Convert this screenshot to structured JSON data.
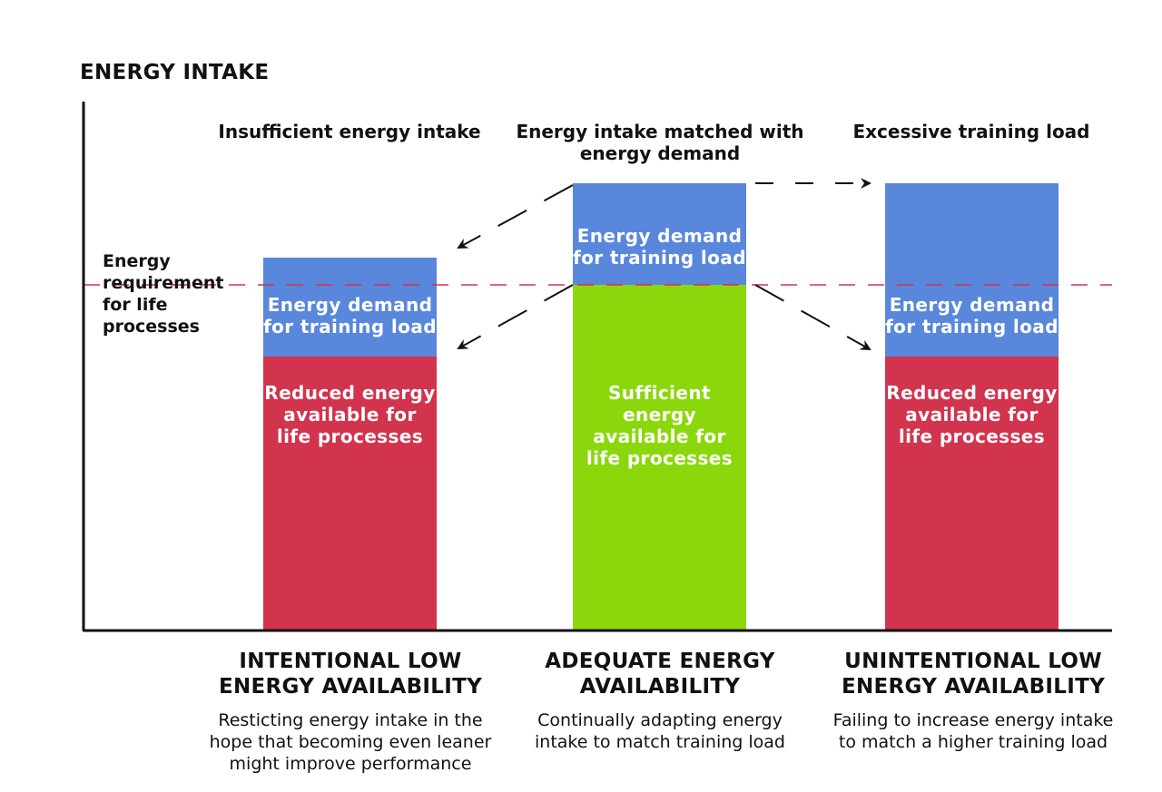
{
  "axis_title": "ENERGY INTAKE",
  "requirement_label": "Energy\nrequirement\nfor life\nprocesses",
  "colors": {
    "training": "#5887dc",
    "reduced": "#d2334d",
    "sufficient": "#8ad80c",
    "dashed_line": "#d2334d",
    "axis": "#111111"
  },
  "columns": [
    {
      "top_label": "Insufficient energy intake",
      "upper_block_label": "Energy demand\nfor training load",
      "lower_block_label": "Reduced energy\navailable for\nlife processes",
      "title": "INTENTIONAL LOW\nENERGY AVAILABILITY",
      "description": "Resticting energy intake in the\nhope that becoming even leaner\nmight improve performance"
    },
    {
      "top_label": "Energy intake matched with\nenergy demand",
      "upper_block_label": "Energy demand\nfor training load",
      "lower_block_label": "Sufficient energy\navailable for\nlife processes",
      "title": "ADEQUATE ENERGY\nAVAILABILITY",
      "description": "Continually adapting energy\nintake to match training load"
    },
    {
      "top_label": "Excessive training load",
      "upper_block_label": "Energy demand\nfor training load",
      "lower_block_label": "Reduced energy\navailable for\nlife processes",
      "title": "UNINTENTIONAL LOW\nENERGY AVAILABILITY",
      "description": "Failing to increase energy intake\nto match a higher training load"
    }
  ]
}
